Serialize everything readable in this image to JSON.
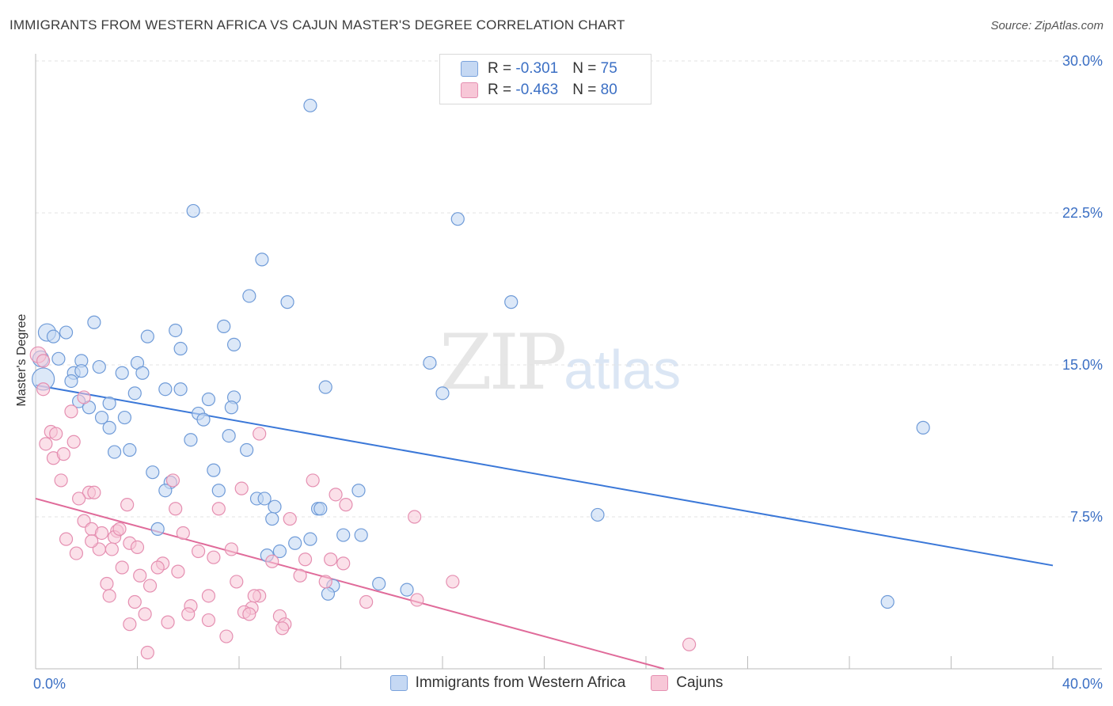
{
  "title": "IMMIGRANTS FROM WESTERN AFRICA VS CAJUN MASTER'S DEGREE CORRELATION CHART",
  "source": "Source: ZipAtlas.com",
  "watermark": {
    "zip": "ZIP",
    "atlas": "atlas"
  },
  "legend": {
    "rows": [
      {
        "r_label": "R = ",
        "r_value": "-0.301",
        "n_label": "N = ",
        "n_value": "75"
      },
      {
        "r_label": "R = ",
        "r_value": "-0.463",
        "n_label": "N = ",
        "n_value": "80"
      }
    ]
  },
  "colors": {
    "blue": "#3b78d8",
    "blue_fill": "#c5d8f3",
    "pink": "#e06b9a",
    "pink_fill": "#f7c7d7",
    "axis_text": "#3b6fc4"
  },
  "chart_data": {
    "type": "scatter",
    "title": "IMMIGRANTS FROM WESTERN AFRICA VS CAJUN MASTER'S DEGREE CORRELATION CHART",
    "xlabel": "",
    "ylabel": "Master's Degree",
    "xlim": [
      0,
      40
    ],
    "ylim": [
      0,
      30
    ],
    "x_tick_labels": [
      "0.0%",
      "40.0%"
    ],
    "y_ticks": [
      7.5,
      15.0,
      22.5,
      30.0
    ],
    "y_tick_labels": [
      "7.5%",
      "15.0%",
      "22.5%",
      "30.0%"
    ],
    "grid": true,
    "legend_position": "bottom-center",
    "series": [
      {
        "name": "Immigrants from Western Africa",
        "color": "#3b78d8",
        "trend": {
          "x": [
            0,
            40
          ],
          "y": [
            14.0,
            5.1
          ]
        },
        "points": [
          [
            10.8,
            27.8
          ],
          [
            6.2,
            22.6
          ],
          [
            16.6,
            22.2
          ],
          [
            8.9,
            20.2
          ],
          [
            8.4,
            18.4
          ],
          [
            9.9,
            18.1
          ],
          [
            18.7,
            18.1
          ],
          [
            0.45,
            16.6
          ],
          [
            1.2,
            16.6
          ],
          [
            2.3,
            17.1
          ],
          [
            5.5,
            16.7
          ],
          [
            7.4,
            16.9
          ],
          [
            4.4,
            16.4
          ],
          [
            0.7,
            16.4
          ],
          [
            5.7,
            15.8
          ],
          [
            7.8,
            16.0
          ],
          [
            0.2,
            15.3
          ],
          [
            0.9,
            15.3
          ],
          [
            1.8,
            15.2
          ],
          [
            4.0,
            15.1
          ],
          [
            2.5,
            14.9
          ],
          [
            15.5,
            15.1
          ],
          [
            1.5,
            14.6
          ],
          [
            1.8,
            14.7
          ],
          [
            3.4,
            14.6
          ],
          [
            4.2,
            14.6
          ],
          [
            0.3,
            14.3
          ],
          [
            1.4,
            14.2
          ],
          [
            5.1,
            13.8
          ],
          [
            5.7,
            13.8
          ],
          [
            3.9,
            13.6
          ],
          [
            11.4,
            13.9
          ],
          [
            16.0,
            13.6
          ],
          [
            7.8,
            13.4
          ],
          [
            6.8,
            13.3
          ],
          [
            1.7,
            13.2
          ],
          [
            2.9,
            13.1
          ],
          [
            7.7,
            12.9
          ],
          [
            2.1,
            12.9
          ],
          [
            6.4,
            12.6
          ],
          [
            2.6,
            12.4
          ],
          [
            3.5,
            12.4
          ],
          [
            6.6,
            12.3
          ],
          [
            2.9,
            11.9
          ],
          [
            7.6,
            11.5
          ],
          [
            6.1,
            11.3
          ],
          [
            34.9,
            11.9
          ],
          [
            8.3,
            10.8
          ],
          [
            3.7,
            10.8
          ],
          [
            3.1,
            10.7
          ],
          [
            7.0,
            9.8
          ],
          [
            4.6,
            9.7
          ],
          [
            5.3,
            9.2
          ],
          [
            5.1,
            8.8
          ],
          [
            7.2,
            8.8
          ],
          [
            12.7,
            8.8
          ],
          [
            8.7,
            8.4
          ],
          [
            9.0,
            8.4
          ],
          [
            9.4,
            8.0
          ],
          [
            11.1,
            7.9
          ],
          [
            11.2,
            7.9
          ],
          [
            9.3,
            7.4
          ],
          [
            22.1,
            7.6
          ],
          [
            4.8,
            6.9
          ],
          [
            12.1,
            6.6
          ],
          [
            12.8,
            6.6
          ],
          [
            10.8,
            6.4
          ],
          [
            10.2,
            6.2
          ],
          [
            9.6,
            5.8
          ],
          [
            9.1,
            5.6
          ],
          [
            13.5,
            4.2
          ],
          [
            14.6,
            3.9
          ],
          [
            11.7,
            4.1
          ],
          [
            11.5,
            3.7
          ],
          [
            33.5,
            3.3
          ]
        ],
        "radii": {
          "0.45,16.6": 11,
          "0.2,15.3": 10,
          "0.3,14.3": 14
        }
      },
      {
        "name": "Cajuns",
        "color": "#e06b9a",
        "trend": {
          "x": [
            0,
            25
          ],
          "y": [
            8.4,
            -0.1
          ]
        },
        "points": [
          [
            0.1,
            15.5
          ],
          [
            0.3,
            15.2
          ],
          [
            0.3,
            13.8
          ],
          [
            1.9,
            13.4
          ],
          [
            1.4,
            12.7
          ],
          [
            0.6,
            11.7
          ],
          [
            0.8,
            11.6
          ],
          [
            0.4,
            11.1
          ],
          [
            1.5,
            11.2
          ],
          [
            0.7,
            10.4
          ],
          [
            1.1,
            10.6
          ],
          [
            8.8,
            11.6
          ],
          [
            1.0,
            9.3
          ],
          [
            5.4,
            9.3
          ],
          [
            10.9,
            9.3
          ],
          [
            8.1,
            8.9
          ],
          [
            2.1,
            8.7
          ],
          [
            2.3,
            8.7
          ],
          [
            11.8,
            8.6
          ],
          [
            1.7,
            8.4
          ],
          [
            12.2,
            8.1
          ],
          [
            3.6,
            8.1
          ],
          [
            5.5,
            7.9
          ],
          [
            7.2,
            7.9
          ],
          [
            10.0,
            7.4
          ],
          [
            14.9,
            7.5
          ],
          [
            1.9,
            7.3
          ],
          [
            3.2,
            6.8
          ],
          [
            2.2,
            6.9
          ],
          [
            2.6,
            6.7
          ],
          [
            5.8,
            6.7
          ],
          [
            3.1,
            6.5
          ],
          [
            1.2,
            6.4
          ],
          [
            3.7,
            6.2
          ],
          [
            4.0,
            6.0
          ],
          [
            2.5,
            5.9
          ],
          [
            3.0,
            5.9
          ],
          [
            6.4,
            5.8
          ],
          [
            7.7,
            5.9
          ],
          [
            1.6,
            5.7
          ],
          [
            7.0,
            5.5
          ],
          [
            9.3,
            5.3
          ],
          [
            10.6,
            5.4
          ],
          [
            11.6,
            5.4
          ],
          [
            12.1,
            5.2
          ],
          [
            5.0,
            5.2
          ],
          [
            4.8,
            5.0
          ],
          [
            3.4,
            5.0
          ],
          [
            5.6,
            4.8
          ],
          [
            4.1,
            4.6
          ],
          [
            10.4,
            4.6
          ],
          [
            7.9,
            4.3
          ],
          [
            11.4,
            4.3
          ],
          [
            16.4,
            4.3
          ],
          [
            2.8,
            4.2
          ],
          [
            4.5,
            4.1
          ],
          [
            2.9,
            3.6
          ],
          [
            6.8,
            3.6
          ],
          [
            8.8,
            3.6
          ],
          [
            8.6,
            3.6
          ],
          [
            3.9,
            3.3
          ],
          [
            6.1,
            3.1
          ],
          [
            8.5,
            3.0
          ],
          [
            13.0,
            3.3
          ],
          [
            15.0,
            3.4
          ],
          [
            8.2,
            2.8
          ],
          [
            4.3,
            2.7
          ],
          [
            6.0,
            2.7
          ],
          [
            9.6,
            2.6
          ],
          [
            6.8,
            2.4
          ],
          [
            5.2,
            2.3
          ],
          [
            3.7,
            2.2
          ],
          [
            8.4,
            2.7
          ],
          [
            9.8,
            2.2
          ],
          [
            9.7,
            2.0
          ],
          [
            7.5,
            1.6
          ],
          [
            25.7,
            1.2
          ],
          [
            4.4,
            0.8
          ],
          [
            2.2,
            6.3
          ],
          [
            3.3,
            6.9
          ]
        ],
        "radii": {
          "0.1,15.5": 10
        }
      }
    ]
  },
  "bottom_legend": [
    {
      "label": "Immigrants from Western Africa"
    },
    {
      "label": "Cajuns"
    }
  ]
}
